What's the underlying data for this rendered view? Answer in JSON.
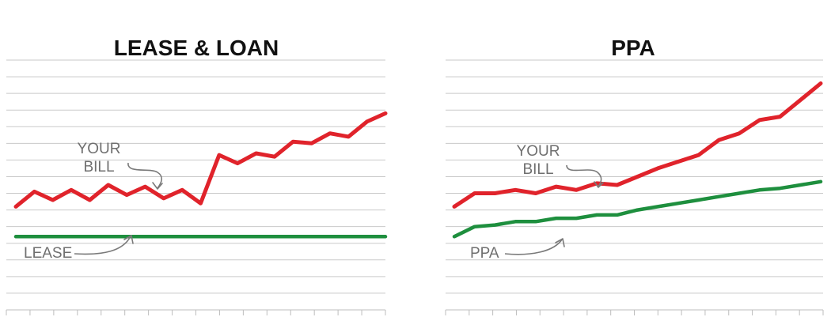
{
  "chart_data": [
    {
      "type": "line",
      "title": "LEASE & LOAN",
      "xlabel": "",
      "ylabel": "",
      "ylim": [
        0,
        15
      ],
      "grid": true,
      "legend": "none",
      "series": [
        {
          "name": "YOUR BILL",
          "color": "#e0232b",
          "values": [
            6.2,
            7.1,
            6.6,
            7.2,
            6.6,
            7.5,
            6.9,
            7.4,
            6.7,
            7.2,
            6.4,
            9.3,
            8.8,
            9.4,
            9.2,
            10.1,
            10.0,
            10.6,
            10.4,
            11.3,
            11.8
          ]
        },
        {
          "name": "LEASE",
          "color": "#1e8f3e",
          "values": [
            4.4,
            4.4,
            4.4,
            4.4,
            4.4,
            4.4,
            4.4,
            4.4,
            4.4,
            4.4,
            4.4,
            4.4,
            4.4,
            4.4,
            4.4,
            4.4,
            4.4,
            4.4,
            4.4,
            4.4,
            4.4
          ]
        }
      ],
      "annotations": [
        "YOUR BILL",
        "LEASE"
      ]
    },
    {
      "type": "line",
      "title": "PPA",
      "xlabel": "",
      "ylabel": "",
      "ylim": [
        0,
        15
      ],
      "grid": true,
      "legend": "none",
      "series": [
        {
          "name": "YOUR BILL",
          "color": "#e0232b",
          "values": [
            6.2,
            7.0,
            7.0,
            7.2,
            7.0,
            7.4,
            7.2,
            7.6,
            7.5,
            8.0,
            8.5,
            8.9,
            9.3,
            10.2,
            10.6,
            11.4,
            11.6,
            12.6,
            13.6
          ]
        },
        {
          "name": "PPA",
          "color": "#1e8f3e",
          "values": [
            4.4,
            5.0,
            5.1,
            5.3,
            5.3,
            5.5,
            5.5,
            5.7,
            5.7,
            6.0,
            6.2,
            6.4,
            6.6,
            6.8,
            7.0,
            7.2,
            7.3,
            7.5,
            7.7
          ]
        }
      ],
      "annotations": [
        "YOUR BILL",
        "PPA"
      ]
    }
  ]
}
